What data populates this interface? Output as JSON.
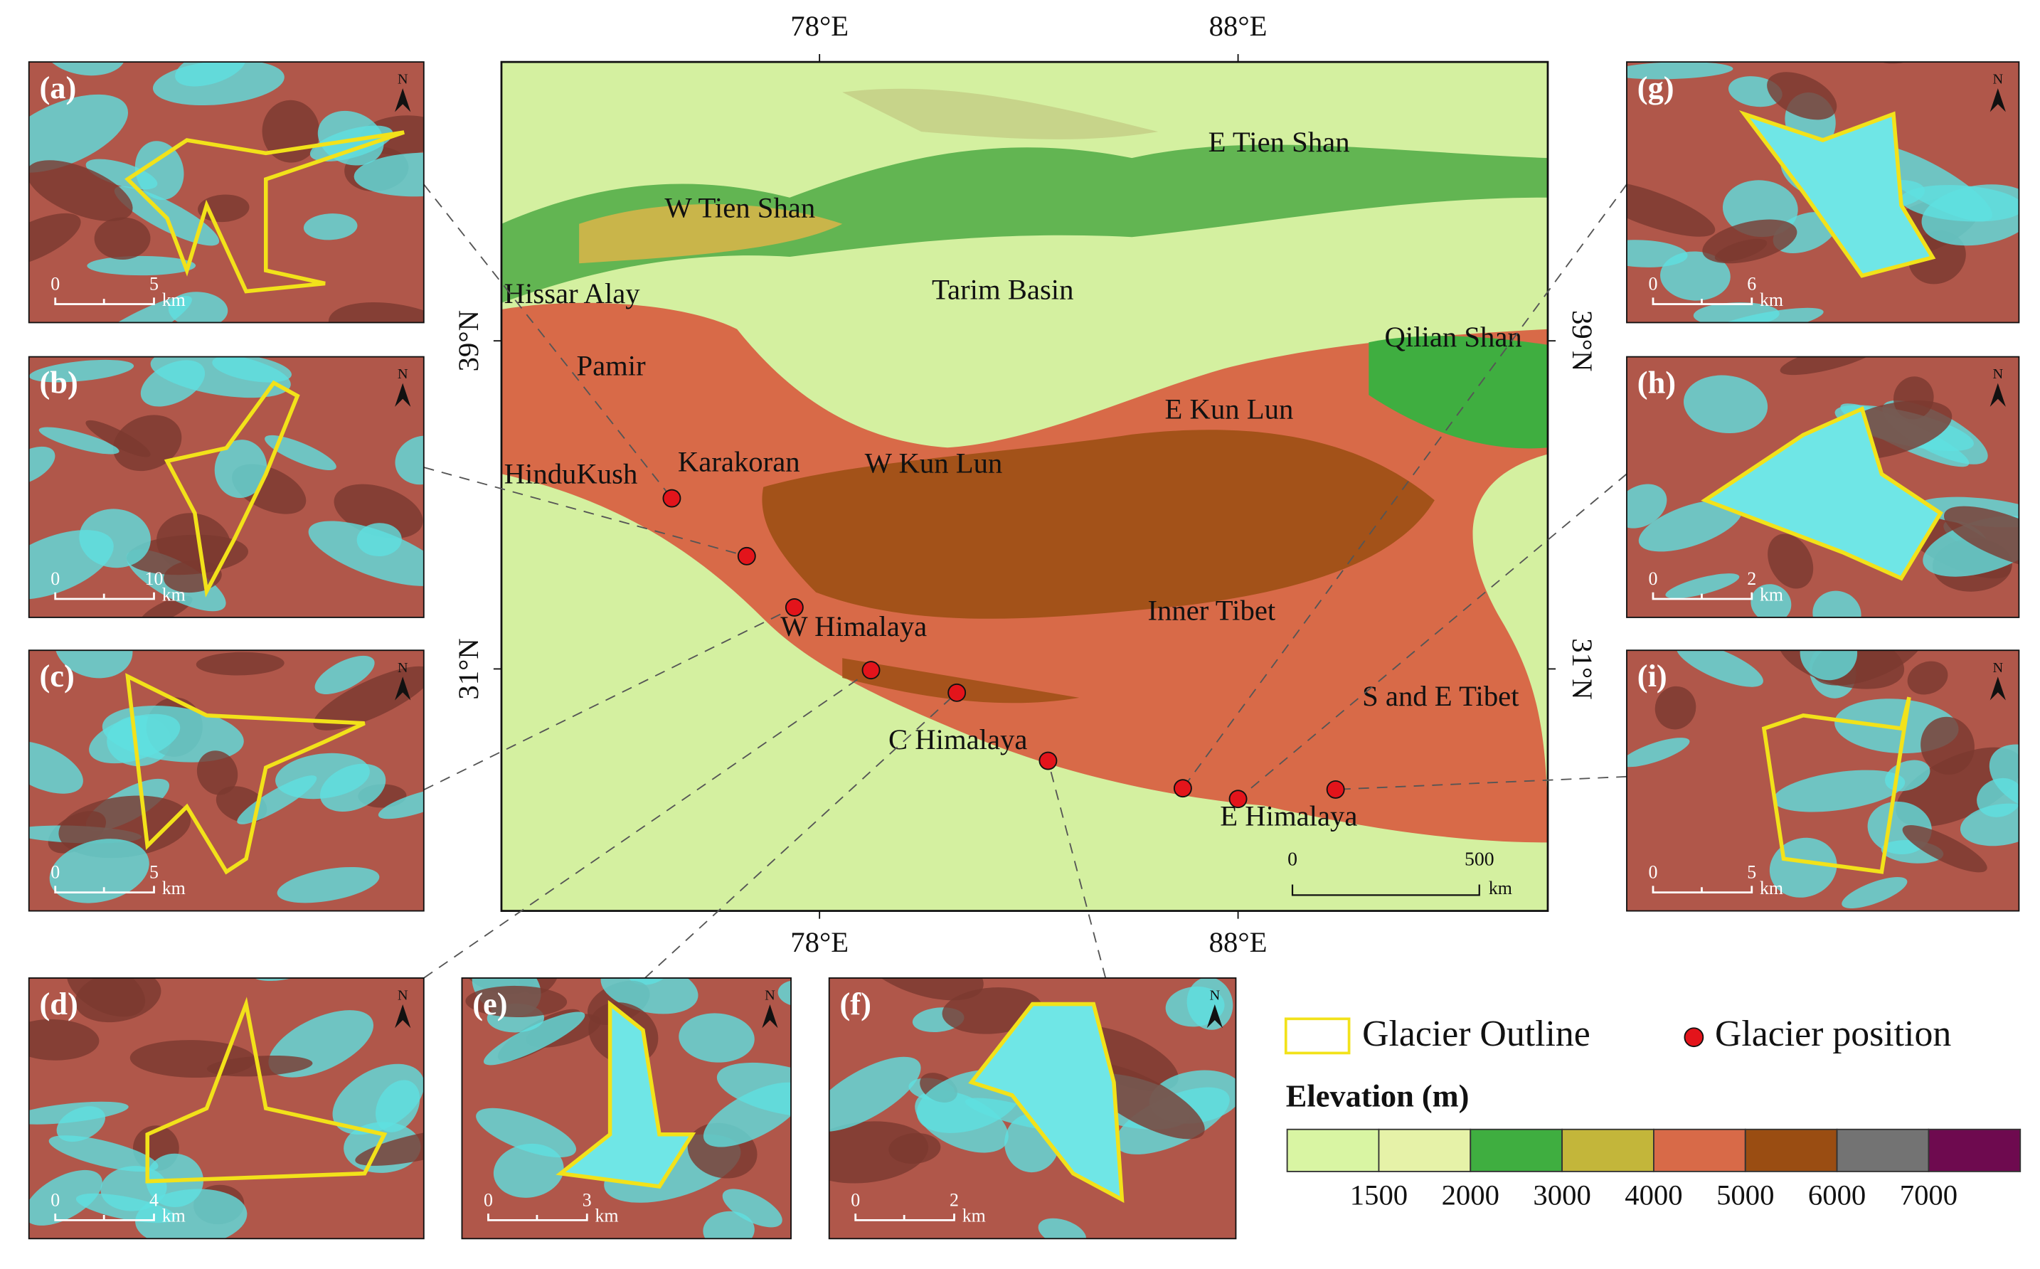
{
  "map": {
    "xlim": [
      70.4,
      95.4
    ],
    "ylim": [
      25.1,
      45.8
    ],
    "xticks": [
      {
        "value": 78,
        "label": "78°E"
      },
      {
        "value": 88,
        "label": "88°E"
      }
    ],
    "yticks": [
      {
        "value": 39,
        "label": "39°N"
      },
      {
        "value": 31,
        "label": "31°N"
      }
    ],
    "regions": [
      "E Tien Shan",
      "W Tien Shan",
      "Tarim Basin",
      "Hissar Alay",
      "Qilian Shan",
      "Pamir",
      "E Kun Lun",
      "HinduKush",
      "Karakoran",
      "W Kun Lun",
      "Inner Tibet",
      "W Himalaya",
      "S and E Tibet",
      "C Himalaya",
      "E Himalaya"
    ],
    "glacier_positions": {
      "color": "#e3141b",
      "lon": [
        74.47,
        76.26,
        77.4,
        79.23,
        81.28,
        83.46,
        86.68,
        88.0,
        90.33
      ],
      "lat": [
        35.16,
        33.75,
        32.5,
        30.97,
        30.42,
        28.76,
        28.09,
        27.83,
        28.06
      ]
    },
    "scale_bar": {
      "labels": [
        "0",
        "500"
      ],
      "unit": "km"
    }
  },
  "panels": {
    "north": "N",
    "items": [
      {
        "label": "(a)",
        "scale": [
          "0",
          "5"
        ],
        "unit": "km"
      },
      {
        "label": "(b)",
        "scale": [
          "0",
          "10"
        ],
        "unit": "km"
      },
      {
        "label": "(c)",
        "scale": [
          "0",
          "5"
        ],
        "unit": "km"
      },
      {
        "label": "(d)",
        "scale": [
          "0",
          "4"
        ],
        "unit": "km"
      },
      {
        "label": "(e)",
        "scale": [
          "0",
          "3"
        ],
        "unit": "km"
      },
      {
        "label": "(f)",
        "scale": [
          "0",
          "2"
        ],
        "unit": "km"
      },
      {
        "label": "(g)",
        "scale": [
          "0",
          "6"
        ],
        "unit": "km"
      },
      {
        "label": "(h)",
        "scale": [
          "0",
          "2"
        ],
        "unit": "km"
      },
      {
        "label": "(i)",
        "scale": [
          "0",
          "5"
        ],
        "unit": "km"
      }
    ]
  },
  "legend": {
    "outline": "Glacier Outline",
    "position": "Glacier position",
    "elevation_title": "Elevation (m)",
    "colors": [
      "#d9f5a3",
      "#e6f2a8",
      "#3fae40",
      "#c3b63a",
      "#d86a48",
      "#9a4d12",
      "#737373",
      "#6e0a4f"
    ],
    "ticks": [
      1500,
      2000,
      3000,
      4000,
      5000,
      6000,
      7000
    ]
  }
}
